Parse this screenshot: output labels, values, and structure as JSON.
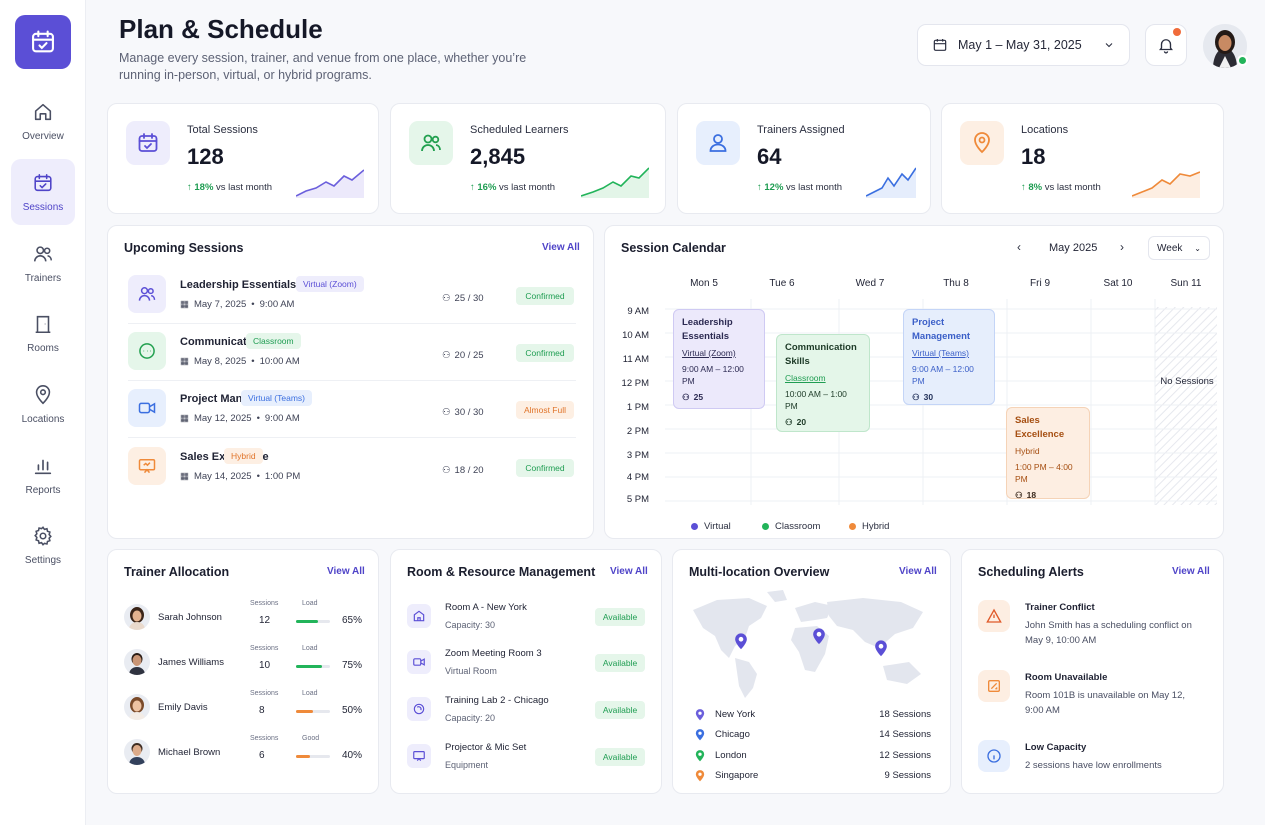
{
  "nav": [
    {
      "label": "Overview"
    },
    {
      "label": "Sessions"
    },
    {
      "label": "Trainers"
    },
    {
      "label": "Rooms"
    },
    {
      "label": "Locations"
    },
    {
      "label": "Reports"
    },
    {
      "label": "Settings"
    }
  ],
  "header": {
    "title": "Plan & Schedule",
    "subtitle": "Manage every session, trainer, and venue from one place, whether you’re running in-person, virtual, or hybrid programs.",
    "date_range": "May 1 – May 31, 2025"
  },
  "stats": [
    {
      "label": "Total Sessions",
      "value": "128",
      "change": "18%",
      "change_text": "vs last month",
      "color": "#6b5fdc"
    },
    {
      "label": "Scheduled Learners",
      "value": "2,845",
      "change": "16%",
      "change_text": "vs last month",
      "color": "#22b45a"
    },
    {
      "label": "Trainers Assigned",
      "value": "64",
      "change": "12%",
      "change_text": "vs last month",
      "color": "#3b6fe0"
    },
    {
      "label": "Locations",
      "value": "18",
      "change": "8%",
      "change_text": "vs last month",
      "color": "#ef8a3a"
    }
  ],
  "upcoming": {
    "title": "Upcoming Sessions",
    "view_all": "View All",
    "items": [
      {
        "name": "Leadership Essentials",
        "tag": "Virtual (Zoom)",
        "date": "May 7, 2025",
        "time": "9:00 AM",
        "capacity": "25 / 30",
        "status": "Confirmed"
      },
      {
        "name": "Communication Skills",
        "tag": "Classroom",
        "date": "May 8, 2025",
        "time": "10:00 AM",
        "capacity": "20 / 25",
        "status": "Confirmed"
      },
      {
        "name": "Project Management",
        "tag": "Virtual (Teams)",
        "date": "May 12, 2025",
        "time": "9:00 AM",
        "capacity": "30 / 30",
        "status": "Almost Full"
      },
      {
        "name": "Sales Excellence",
        "tag": "Hybrid",
        "date": "May 14, 2025",
        "time": "1:00 PM",
        "capacity": "18 / 20",
        "status": "Confirmed"
      }
    ]
  },
  "calendar": {
    "title": "Session Calendar",
    "month": "May 2025",
    "view": "Week",
    "days": [
      "Mon 5",
      "Tue 6",
      "Wed 7",
      "Thu 8",
      "Fri 9",
      "Sat 10",
      "Sun 11"
    ],
    "times": [
      "9 AM",
      "10 AM",
      "11 AM",
      "12 PM",
      "1 PM",
      "2 PM",
      "3 PM",
      "4 PM",
      "5 PM"
    ],
    "events": [
      {
        "name": "Leadership Essentials",
        "type": "Virtual (Zoom)",
        "time": "9:00 AM – 12:00 PM",
        "count": "25"
      },
      {
        "name": "Communication Skills",
        "type": "Classroom",
        "time": "10:00 AM – 1:00 PM",
        "count": "20"
      },
      {
        "name": "Project Management",
        "type": "Virtual (Teams)",
        "time": "9:00 AM – 12:00 PM",
        "count": "30"
      },
      {
        "name": "Sales Excellence",
        "type": "Hybrid",
        "time": "1:00 PM – 4:00 PM",
        "count": "18"
      }
    ],
    "no_sessions": "No Sessions",
    "legend": [
      "Virtual",
      "Classroom",
      "Hybrid"
    ]
  },
  "trainers": {
    "title": "Trainer Allocation",
    "view_all": "View All",
    "sessions_label": "Sessions",
    "load_label": "Load",
    "good_label": "Good",
    "items": [
      {
        "name": "Sarah Johnson",
        "sessions": "12",
        "load": "65%",
        "load_value": 65,
        "color": "#22b45a"
      },
      {
        "name": "James Williams",
        "sessions": "10",
        "load": "75%",
        "load_value": 75,
        "color": "#22b45a"
      },
      {
        "name": "Emily Davis",
        "sessions": "8",
        "load": "50%",
        "load_value": 50,
        "color": "#ef8a3a"
      },
      {
        "name": "Michael Brown",
        "sessions": "6",
        "load": "40%",
        "load_value": 40,
        "color": "#ef8a3a"
      }
    ]
  },
  "rooms": {
    "title": "Room & Resource Management",
    "view_all": "View All",
    "items": [
      {
        "name": "Room A - New York",
        "sub": "Capacity: 30",
        "status": "Available"
      },
      {
        "name": "Zoom Meeting Room 3",
        "sub": "Virtual Room",
        "status": "Available"
      },
      {
        "name": "Training Lab 2 - Chicago",
        "sub": "Capacity: 20",
        "status": "Available"
      },
      {
        "name": "Projector & Mic Set",
        "sub": "Equipment",
        "status": "Available"
      }
    ]
  },
  "locations": {
    "title": "Multi-location Overview",
    "view_all": "View All",
    "items": [
      {
        "name": "New York",
        "count": "18 Sessions",
        "color": "#6b5fdc"
      },
      {
        "name": "Chicago",
        "count": "14 Sessions",
        "color": "#3b6fe0"
      },
      {
        "name": "London",
        "count": "12 Sessions",
        "color": "#22b45a"
      },
      {
        "name": "Singapore",
        "count": "9 Sessions",
        "color": "#ef8a3a"
      }
    ]
  },
  "alerts": {
    "title": "Scheduling Alerts",
    "view_all": "View All",
    "items": [
      {
        "title": "Trainer Conflict",
        "desc": "John Smith has a scheduling conflict on May 9, 10:00 AM"
      },
      {
        "title": "Room Unavailable",
        "desc": "Room 101B is unavailable on May 12, 9:00 AM"
      },
      {
        "title": "Low Capacity",
        "desc": "2 sessions have low enrollments"
      }
    ]
  }
}
